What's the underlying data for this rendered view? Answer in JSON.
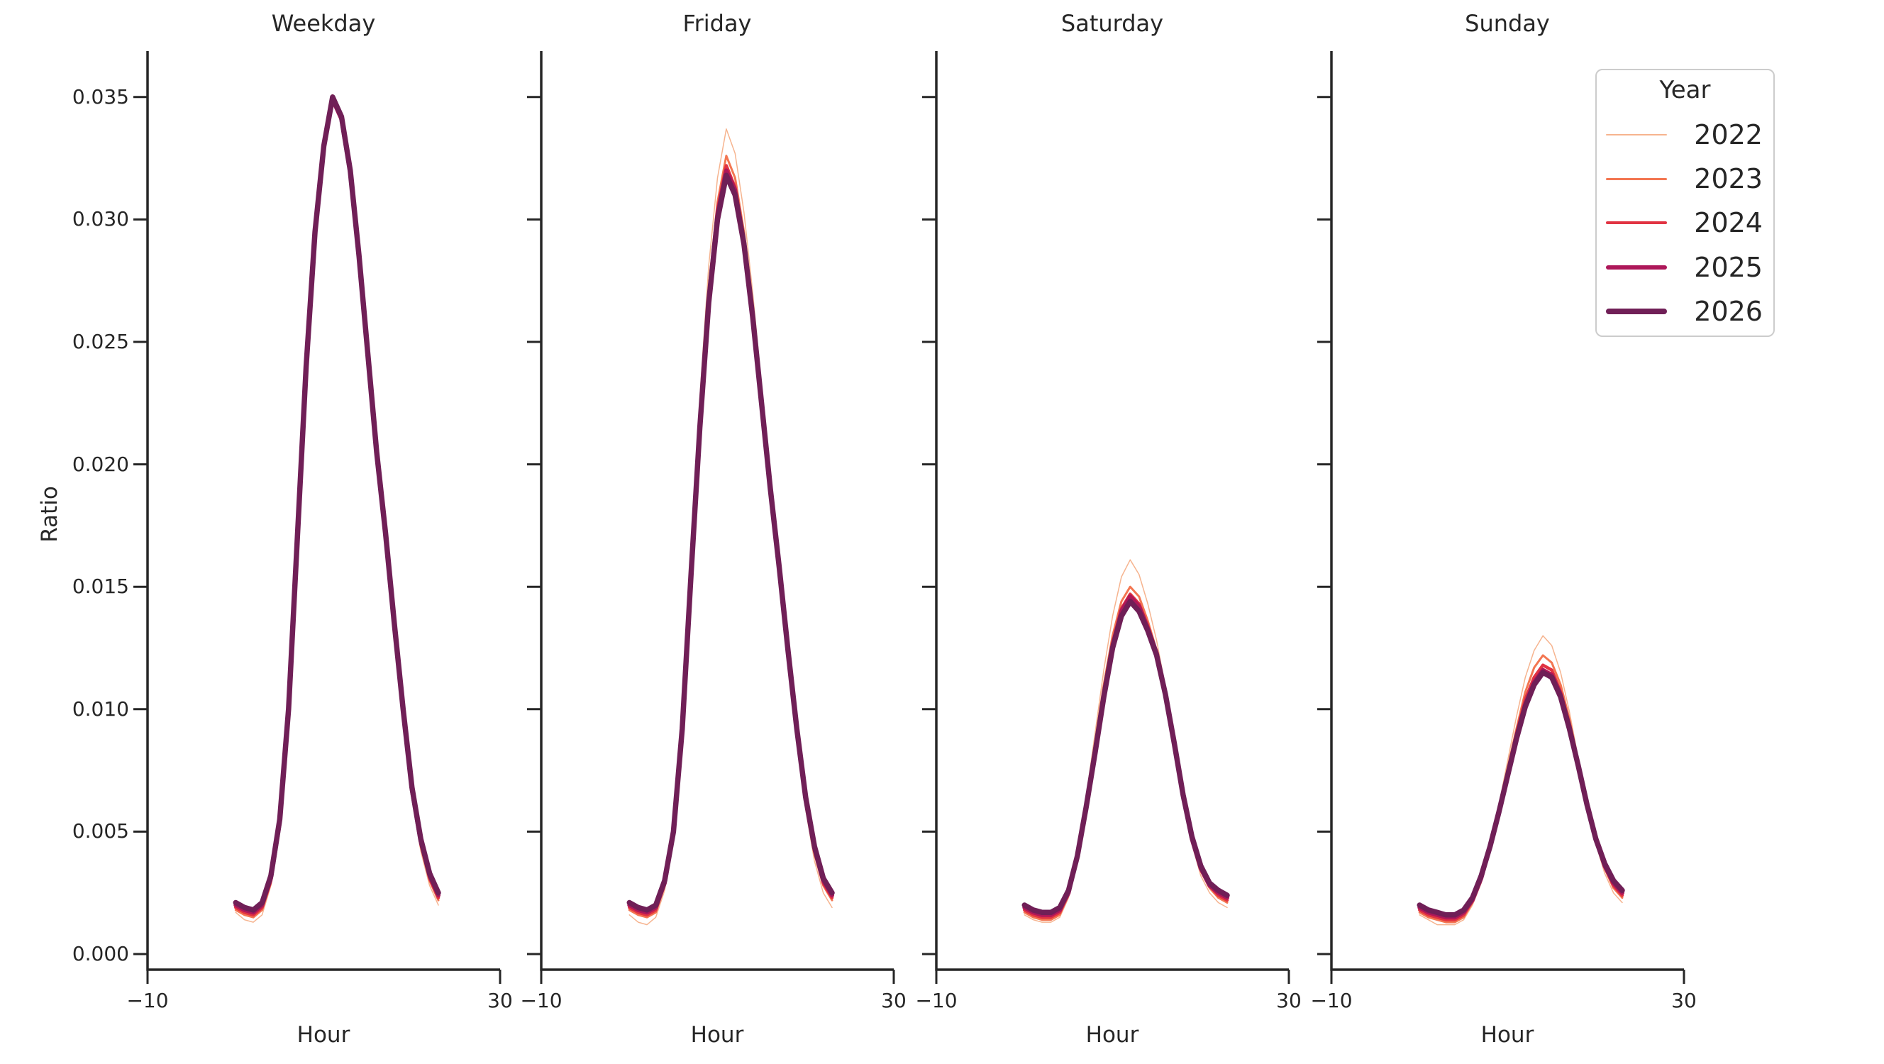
{
  "figure": {
    "background": "#ffffff",
    "axis_color": "#262626",
    "text_color": "#262626"
  },
  "y_axis": {
    "label": "Ratio",
    "tick_labels": [
      "0.035",
      "0.030",
      "0.025",
      "0.020",
      "0.015",
      "0.010",
      "0.005",
      "0.000"
    ],
    "tick_values": [
      0.035,
      0.03,
      0.025,
      0.02,
      0.015,
      0.01,
      0.005,
      0.0
    ]
  },
  "x_axis": {
    "label": "Hour",
    "tick_labels": [
      "−10",
      "30"
    ],
    "tick_values": [
      -10,
      30
    ]
  },
  "legend": {
    "title": "Year",
    "entries": [
      {
        "label": "2022",
        "color": "#f6b48f",
        "line_width": 1.5
      },
      {
        "label": "2023",
        "color": "#f37651",
        "line_width": 3
      },
      {
        "label": "2024",
        "color": "#e13342",
        "line_width": 4.5
      },
      {
        "label": "2025",
        "color": "#ad1759",
        "line_width": 6
      },
      {
        "label": "2026",
        "color": "#701f57",
        "line_width": 7.5
      }
    ]
  },
  "chart_data": [
    {
      "type": "line",
      "title": "Weekday",
      "xlabel": "Hour",
      "ylabel": "Ratio",
      "xlim": [
        -10,
        30
      ],
      "ylim": [
        -0.0006,
        0.0369
      ],
      "grid": false,
      "legend_position": "upper right",
      "x": [
        0,
        1,
        2,
        3,
        4,
        5,
        6,
        7,
        8,
        9,
        10,
        11,
        12,
        13,
        14,
        15,
        16,
        17,
        18,
        19,
        20,
        21,
        22,
        23
      ],
      "series": [
        {
          "name": "2022",
          "color": "#f6b48f",
          "line_width": 1.5,
          "values": [
            0.0017,
            0.0014,
            0.0013,
            0.0016,
            0.0028,
            0.0051,
            0.0096,
            0.0166,
            0.0237,
            0.0293,
            0.033,
            0.0351,
            0.0342,
            0.032,
            0.0284,
            0.0243,
            0.0202,
            0.0168,
            0.0131,
            0.0096,
            0.0064,
            0.0042,
            0.0028,
            0.002
          ]
        },
        {
          "name": "2023",
          "color": "#f37651",
          "line_width": 3,
          "values": [
            0.0018,
            0.0016,
            0.0015,
            0.0018,
            0.0029,
            0.0052,
            0.0097,
            0.0167,
            0.0238,
            0.0293,
            0.033,
            0.035,
            0.0341,
            0.0319,
            0.0283,
            0.0243,
            0.0203,
            0.0169,
            0.0132,
            0.0097,
            0.0065,
            0.0044,
            0.003,
            0.0022
          ]
        },
        {
          "name": "2024",
          "color": "#e13342",
          "line_width": 4.5,
          "values": [
            0.0019,
            0.0017,
            0.0016,
            0.0019,
            0.003,
            0.0053,
            0.0098,
            0.0168,
            0.0239,
            0.0294,
            0.033,
            0.035,
            0.0341,
            0.0319,
            0.0284,
            0.0244,
            0.0203,
            0.017,
            0.0133,
            0.0098,
            0.0066,
            0.0045,
            0.0031,
            0.0023
          ]
        },
        {
          "name": "2025",
          "color": "#ad1759",
          "line_width": 6,
          "values": [
            0.002,
            0.0018,
            0.0017,
            0.002,
            0.0031,
            0.0054,
            0.0099,
            0.0169,
            0.0239,
            0.0294,
            0.033,
            0.0349,
            0.0341,
            0.0319,
            0.0284,
            0.0244,
            0.0204,
            0.0171,
            0.0134,
            0.0099,
            0.0067,
            0.0046,
            0.0032,
            0.0024
          ]
        },
        {
          "name": "2026",
          "color": "#701f57",
          "line_width": 7.5,
          "values": [
            0.0021,
            0.0019,
            0.0018,
            0.0021,
            0.0032,
            0.0055,
            0.01,
            0.017,
            0.024,
            0.0295,
            0.033,
            0.035,
            0.0342,
            0.032,
            0.0285,
            0.0245,
            0.0205,
            0.0172,
            0.0135,
            0.01,
            0.0068,
            0.0047,
            0.0033,
            0.0025
          ]
        }
      ]
    },
    {
      "type": "line",
      "title": "Friday",
      "xlabel": "Hour",
      "ylabel": "Ratio",
      "xlim": [
        -10,
        30
      ],
      "ylim": [
        -0.0006,
        0.0369
      ],
      "grid": false,
      "x": [
        0,
        1,
        2,
        3,
        4,
        5,
        6,
        7,
        8,
        9,
        10,
        11,
        12,
        13,
        14,
        15,
        16,
        17,
        18,
        19,
        20,
        21,
        22,
        23
      ],
      "series": [
        {
          "name": "2022",
          "color": "#f6b48f",
          "line_width": 1.5,
          "values": [
            0.0016,
            0.0013,
            0.0012,
            0.0015,
            0.0026,
            0.0048,
            0.0094,
            0.0162,
            0.0227,
            0.0281,
            0.0317,
            0.0337,
            0.0327,
            0.0303,
            0.027,
            0.0232,
            0.0193,
            0.0158,
            0.0122,
            0.0088,
            0.0059,
            0.0038,
            0.0025,
            0.0019
          ]
        },
        {
          "name": "2023",
          "color": "#f37651",
          "line_width": 3,
          "values": [
            0.0018,
            0.0016,
            0.0015,
            0.0017,
            0.0028,
            0.0049,
            0.0093,
            0.0158,
            0.022,
            0.0272,
            0.0307,
            0.0326,
            0.0317,
            0.0295,
            0.0264,
            0.0228,
            0.0192,
            0.0158,
            0.0123,
            0.009,
            0.0061,
            0.0041,
            0.0028,
            0.0022
          ]
        },
        {
          "name": "2024",
          "color": "#e13342",
          "line_width": 4.5,
          "values": [
            0.0019,
            0.0017,
            0.0016,
            0.0018,
            0.0029,
            0.0049,
            0.0092,
            0.0157,
            0.0217,
            0.0269,
            0.0304,
            0.0322,
            0.0313,
            0.0292,
            0.0262,
            0.0226,
            0.0191,
            0.0158,
            0.0124,
            0.0091,
            0.0062,
            0.0042,
            0.0029,
            0.0023
          ]
        },
        {
          "name": "2025",
          "color": "#ad1759",
          "line_width": 6,
          "values": [
            0.002,
            0.0018,
            0.0017,
            0.0019,
            0.0029,
            0.005,
            0.0092,
            0.0156,
            0.0216,
            0.0267,
            0.0302,
            0.032,
            0.0312,
            0.0291,
            0.0261,
            0.0226,
            0.019,
            0.0158,
            0.0124,
            0.0092,
            0.0063,
            0.0043,
            0.003,
            0.0024
          ]
        },
        {
          "name": "2026",
          "color": "#701f57",
          "line_width": 7.5,
          "values": [
            0.0021,
            0.0019,
            0.0018,
            0.002,
            0.003,
            0.005,
            0.0092,
            0.0155,
            0.0215,
            0.0266,
            0.03,
            0.0318,
            0.031,
            0.029,
            0.026,
            0.0225,
            0.019,
            0.0158,
            0.0124,
            0.0092,
            0.0064,
            0.0044,
            0.0031,
            0.0025
          ]
        }
      ]
    },
    {
      "type": "line",
      "title": "Saturday",
      "xlabel": "Hour",
      "ylabel": "Ratio",
      "xlim": [
        -10,
        30
      ],
      "ylim": [
        -0.0006,
        0.0369
      ],
      "grid": false,
      "x": [
        0,
        1,
        2,
        3,
        4,
        5,
        6,
        7,
        8,
        9,
        10,
        11,
        12,
        13,
        14,
        15,
        16,
        17,
        18,
        19,
        20,
        21,
        22,
        23
      ],
      "series": [
        {
          "name": "2022",
          "color": "#f6b48f",
          "line_width": 1.5,
          "values": [
            0.0016,
            0.0014,
            0.0013,
            0.0013,
            0.0015,
            0.0023,
            0.004,
            0.0064,
            0.009,
            0.0116,
            0.0138,
            0.0154,
            0.0161,
            0.0155,
            0.0143,
            0.0128,
            0.0109,
            0.0087,
            0.0063,
            0.0045,
            0.0032,
            0.0025,
            0.0021,
            0.0019
          ]
        },
        {
          "name": "2023",
          "color": "#f37651",
          "line_width": 3,
          "values": [
            0.0017,
            0.0015,
            0.0014,
            0.0014,
            0.0016,
            0.0024,
            0.004,
            0.0062,
            0.0086,
            0.011,
            0.013,
            0.0144,
            0.015,
            0.0146,
            0.0136,
            0.0124,
            0.0107,
            0.0086,
            0.0064,
            0.0046,
            0.0034,
            0.0027,
            0.0023,
            0.0021
          ]
        },
        {
          "name": "2024",
          "color": "#e13342",
          "line_width": 4.5,
          "values": [
            0.0018,
            0.0016,
            0.0015,
            0.0015,
            0.0017,
            0.0025,
            0.004,
            0.0061,
            0.0084,
            0.0107,
            0.0127,
            0.0141,
            0.0147,
            0.0143,
            0.0134,
            0.0123,
            0.0106,
            0.0086,
            0.0064,
            0.0047,
            0.0035,
            0.0028,
            0.0024,
            0.0022
          ]
        },
        {
          "name": "2025",
          "color": "#ad1759",
          "line_width": 6,
          "values": [
            0.0019,
            0.0017,
            0.0016,
            0.0016,
            0.0018,
            0.0025,
            0.004,
            0.006,
            0.0083,
            0.0106,
            0.0126,
            0.014,
            0.0146,
            0.0142,
            0.0133,
            0.0123,
            0.0106,
            0.0086,
            0.0065,
            0.0047,
            0.0035,
            0.0028,
            0.0025,
            0.0023
          ]
        },
        {
          "name": "2026",
          "color": "#701f57",
          "line_width": 7.5,
          "values": [
            0.002,
            0.0018,
            0.0017,
            0.0017,
            0.0019,
            0.0026,
            0.004,
            0.006,
            0.0082,
            0.0105,
            0.0125,
            0.0138,
            0.0144,
            0.014,
            0.0132,
            0.0122,
            0.0106,
            0.0086,
            0.0065,
            0.0048,
            0.0036,
            0.0029,
            0.0026,
            0.0024
          ]
        }
      ]
    },
    {
      "type": "line",
      "title": "Sunday",
      "xlabel": "Hour",
      "ylabel": "Ratio",
      "xlim": [
        -10,
        30
      ],
      "ylim": [
        -0.0006,
        0.0369
      ],
      "grid": false,
      "x": [
        0,
        1,
        2,
        3,
        4,
        5,
        6,
        7,
        8,
        9,
        10,
        11,
        12,
        13,
        14,
        15,
        16,
        17,
        18,
        19,
        20,
        21,
        22,
        23
      ],
      "series": [
        {
          "name": "2022",
          "color": "#f6b48f",
          "line_width": 1.5,
          "values": [
            0.0016,
            0.0014,
            0.0012,
            0.0012,
            0.0012,
            0.0014,
            0.002,
            0.0029,
            0.0044,
            0.0061,
            0.0079,
            0.0097,
            0.0113,
            0.0124,
            0.013,
            0.0126,
            0.0115,
            0.0099,
            0.008,
            0.0061,
            0.0045,
            0.0033,
            0.0025,
            0.0021
          ]
        },
        {
          "name": "2023",
          "color": "#f37651",
          "line_width": 3,
          "values": [
            0.0017,
            0.0015,
            0.0014,
            0.0013,
            0.0013,
            0.0015,
            0.0021,
            0.003,
            0.0044,
            0.006,
            0.0076,
            0.0092,
            0.0107,
            0.0117,
            0.0122,
            0.0119,
            0.011,
            0.0096,
            0.0079,
            0.0061,
            0.0046,
            0.0035,
            0.0027,
            0.0023
          ]
        },
        {
          "name": "2024",
          "color": "#e13342",
          "line_width": 4.5,
          "values": [
            0.0018,
            0.0016,
            0.0015,
            0.0014,
            0.0014,
            0.0016,
            0.0022,
            0.0031,
            0.0044,
            0.0059,
            0.0074,
            0.009,
            0.0104,
            0.0113,
            0.0118,
            0.0116,
            0.0107,
            0.0094,
            0.0078,
            0.0061,
            0.0046,
            0.0036,
            0.0028,
            0.0024
          ]
        },
        {
          "name": "2025",
          "color": "#ad1759",
          "line_width": 6,
          "values": [
            0.0019,
            0.0017,
            0.0016,
            0.0015,
            0.0015,
            0.0017,
            0.0022,
            0.0031,
            0.0044,
            0.0058,
            0.0073,
            0.0089,
            0.0102,
            0.0111,
            0.0116,
            0.0114,
            0.0106,
            0.0093,
            0.0077,
            0.0061,
            0.0047,
            0.0036,
            0.0029,
            0.0025
          ]
        },
        {
          "name": "2026",
          "color": "#701f57",
          "line_width": 7.5,
          "values": [
            0.002,
            0.0018,
            0.0017,
            0.0016,
            0.0016,
            0.0018,
            0.0023,
            0.0032,
            0.0044,
            0.0058,
            0.0073,
            0.0088,
            0.0101,
            0.011,
            0.0115,
            0.0113,
            0.0105,
            0.0092,
            0.0077,
            0.0061,
            0.0047,
            0.0037,
            0.003,
            0.0026
          ]
        }
      ]
    }
  ]
}
